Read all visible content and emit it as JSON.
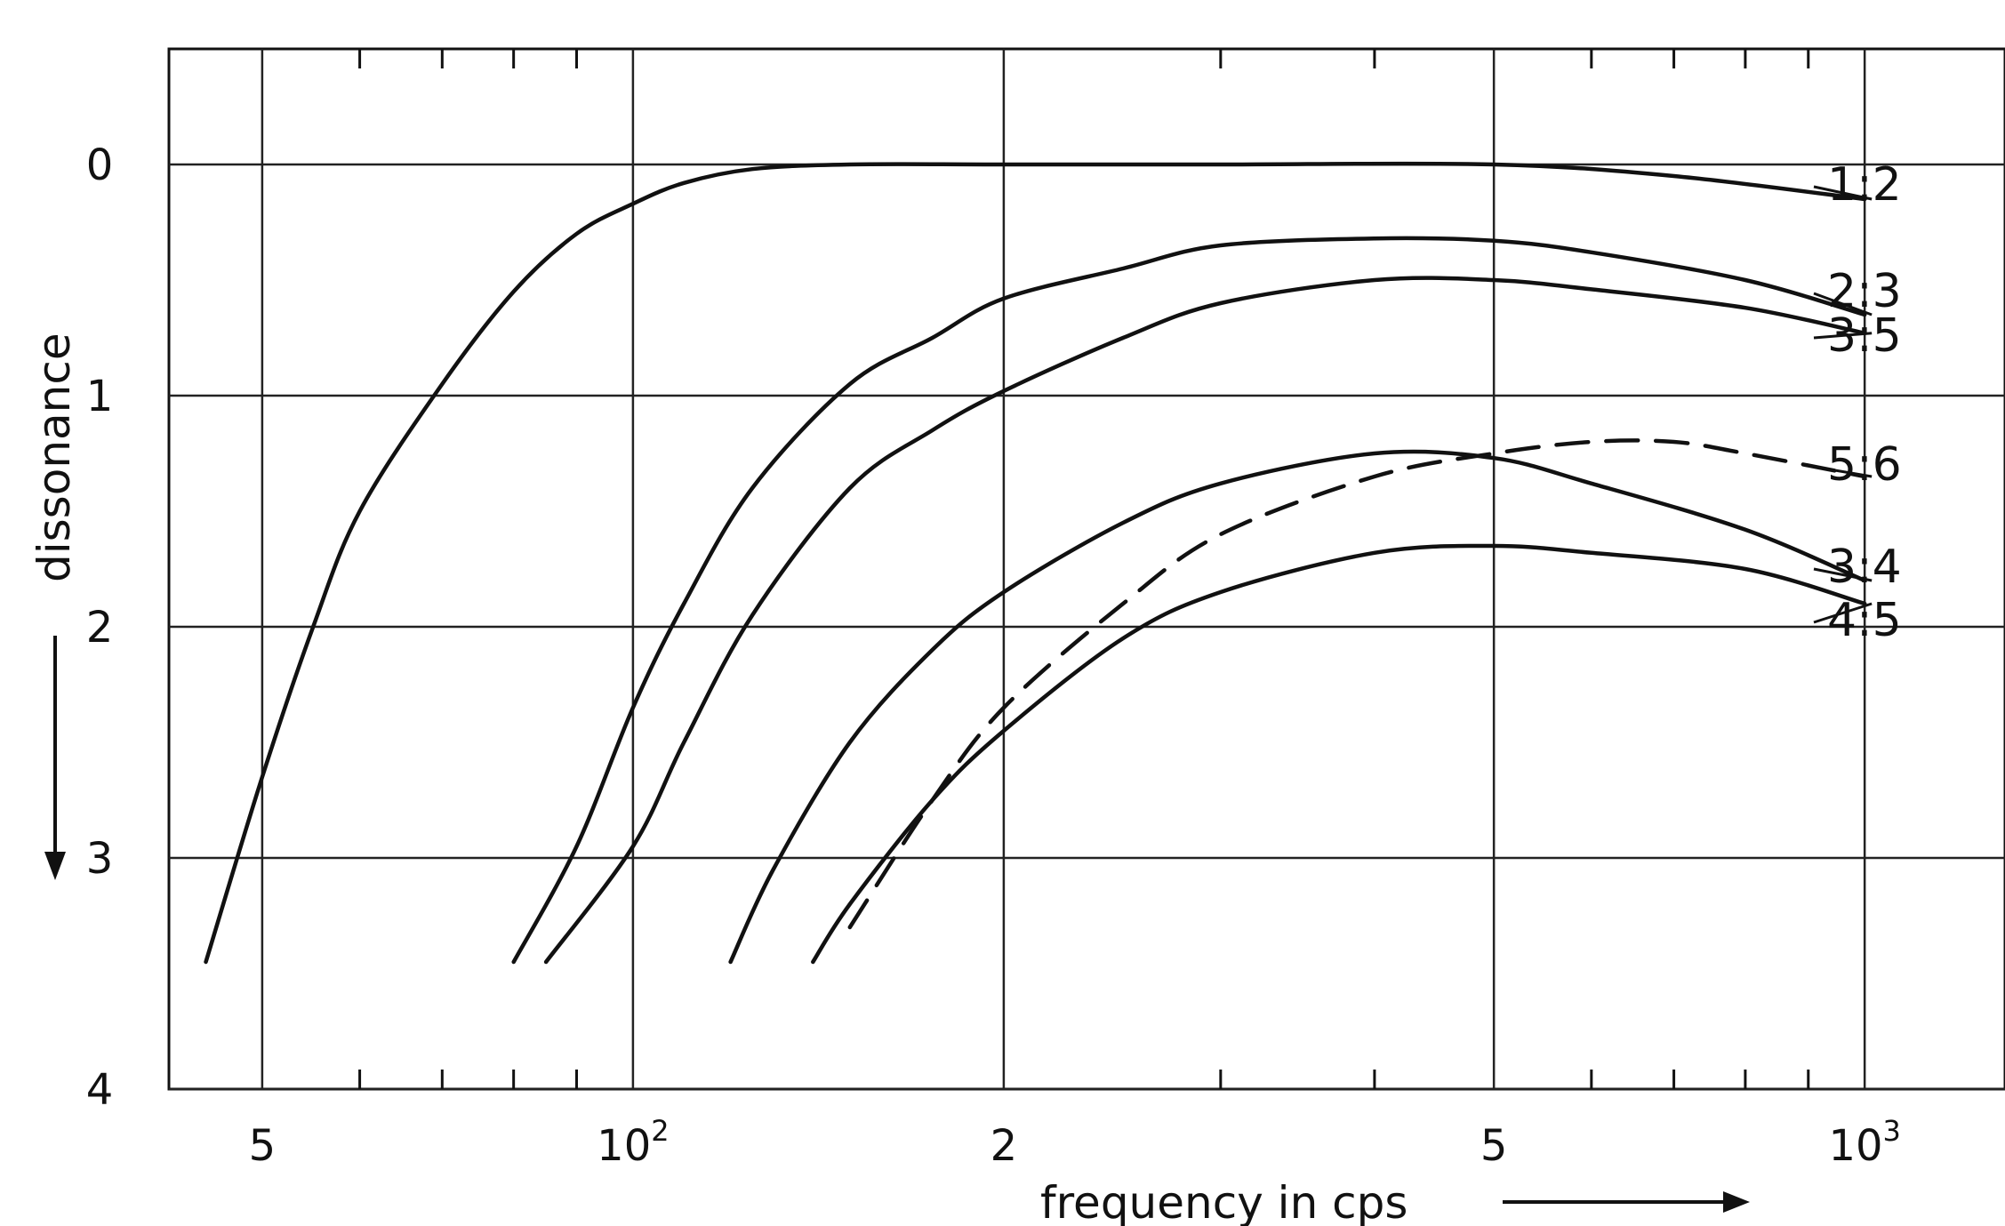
{
  "chart_data": {
    "type": "line",
    "x_scale": "log",
    "xlabel": "frequency in cps",
    "ylabel": "dissonance",
    "y_direction": "downward",
    "xlim": [
      42,
      1300
    ],
    "ylim": [
      0,
      4
    ],
    "grid": true,
    "x_ticks": [
      {
        "value": 50,
        "label": "5"
      },
      {
        "value": 100,
        "label": "10",
        "superscript": "2"
      },
      {
        "value": 200,
        "label": "2"
      },
      {
        "value": 500,
        "label": "5"
      },
      {
        "value": 1000,
        "label": "10",
        "superscript": "3"
      }
    ],
    "y_ticks": [
      {
        "value": 0,
        "label": "0"
      },
      {
        "value": 1,
        "label": "1"
      },
      {
        "value": 2,
        "label": "2"
      },
      {
        "value": 3,
        "label": "3"
      },
      {
        "value": 4,
        "label": "4"
      }
    ],
    "series": [
      {
        "name": "1:2",
        "style": "solid",
        "x": [
          45,
          50,
          55,
          60,
          70,
          80,
          90,
          100,
          110,
          125,
          150,
          200,
          300,
          500,
          700,
          1000
        ],
        "y": [
          3.45,
          2.65,
          2.0,
          1.5,
          0.95,
          0.55,
          0.3,
          0.17,
          0.08,
          0.02,
          0.0,
          0.0,
          0.0,
          0.0,
          0.05,
          0.15
        ]
      },
      {
        "name": "2:3",
        "style": "solid",
        "x": [
          80,
          90,
          100,
          110,
          125,
          150,
          175,
          200,
          250,
          300,
          400,
          500,
          600,
          800,
          1000
        ],
        "y": [
          3.45,
          2.95,
          2.35,
          1.9,
          1.4,
          0.95,
          0.75,
          0.58,
          0.45,
          0.35,
          0.32,
          0.33,
          0.38,
          0.5,
          0.65
        ]
      },
      {
        "name": "3:5",
        "style": "solid",
        "x": [
          85,
          100,
          110,
          125,
          150,
          175,
          200,
          250,
          300,
          400,
          500,
          600,
          800,
          1000
        ],
        "y": [
          3.45,
          2.95,
          2.5,
          1.95,
          1.4,
          1.15,
          0.98,
          0.75,
          0.6,
          0.5,
          0.5,
          0.54,
          0.62,
          0.73
        ]
      },
      {
        "name": "5:6",
        "style": "dashed",
        "x": [
          150,
          175,
          200,
          250,
          300,
          400,
          500,
          600,
          700,
          800,
          1000
        ],
        "y": [
          3.3,
          2.75,
          2.35,
          1.9,
          1.6,
          1.35,
          1.25,
          1.2,
          1.2,
          1.25,
          1.35
        ]
      },
      {
        "name": "3:4",
        "style": "solid",
        "x": [
          120,
          130,
          150,
          175,
          200,
          250,
          300,
          400,
          500,
          600,
          800,
          1000
        ],
        "y": [
          3.45,
          3.05,
          2.5,
          2.1,
          1.85,
          1.55,
          1.38,
          1.25,
          1.27,
          1.38,
          1.58,
          1.8
        ]
      },
      {
        "name": "4:5",
        "style": "solid",
        "x": [
          140,
          150,
          175,
          200,
          250,
          300,
          400,
          500,
          600,
          800,
          1000
        ],
        "y": [
          3.45,
          3.2,
          2.75,
          2.45,
          2.05,
          1.85,
          1.68,
          1.65,
          1.68,
          1.75,
          1.9
        ]
      }
    ]
  }
}
